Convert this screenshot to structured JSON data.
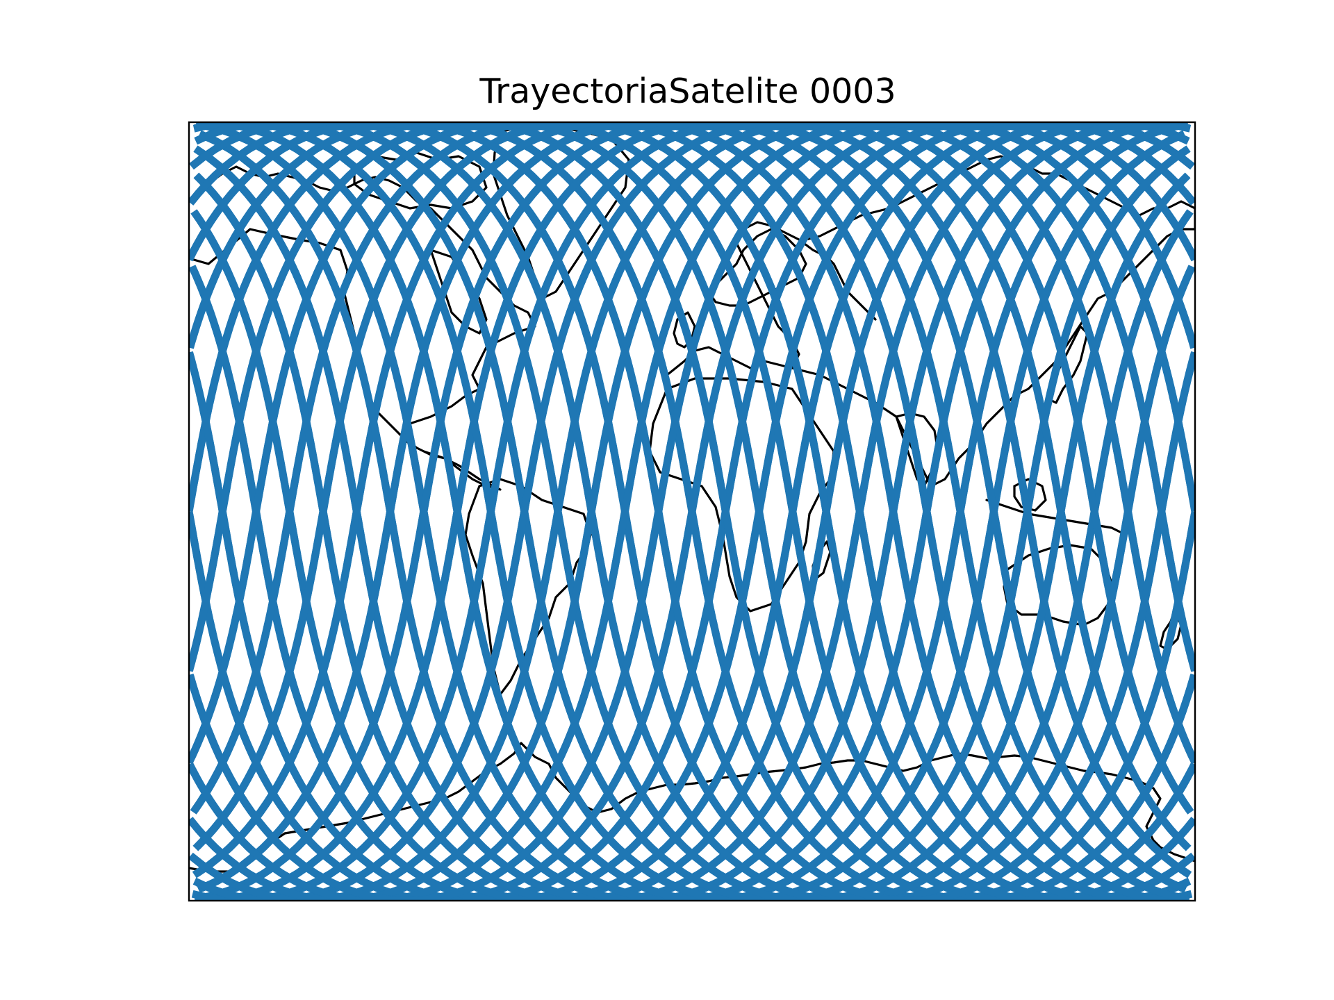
{
  "title": "TrayectoriaSatelite 0003",
  "map": {
    "projection": "mercator",
    "lon_range": [
      -180,
      180
    ],
    "lat_range": [
      -80,
      80
    ]
  },
  "colors": {
    "track": "#1f77b4",
    "coastline": "#000000",
    "frame": "#000000",
    "background": "#ffffff"
  },
  "satellite_track": {
    "inclination_deg": 80,
    "ground_track_count": 30,
    "equator_crossing_spacing_deg": 12
  }
}
